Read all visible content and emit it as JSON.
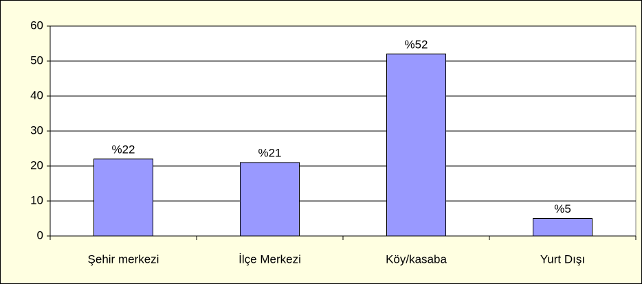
{
  "chart_data": {
    "type": "bar",
    "categories": [
      "Şehir merkezi",
      "İlçe Merkezi",
      "Köy/kasaba",
      "Yurt Dışı"
    ],
    "values": [
      22,
      21,
      52,
      5
    ],
    "value_labels": [
      "%22",
      "%21",
      "%52",
      "%5"
    ],
    "color": "#9999ff",
    "ylim": [
      0,
      60
    ],
    "yticks": [
      0,
      10,
      20,
      30,
      40,
      50,
      60
    ],
    "grid": true
  }
}
